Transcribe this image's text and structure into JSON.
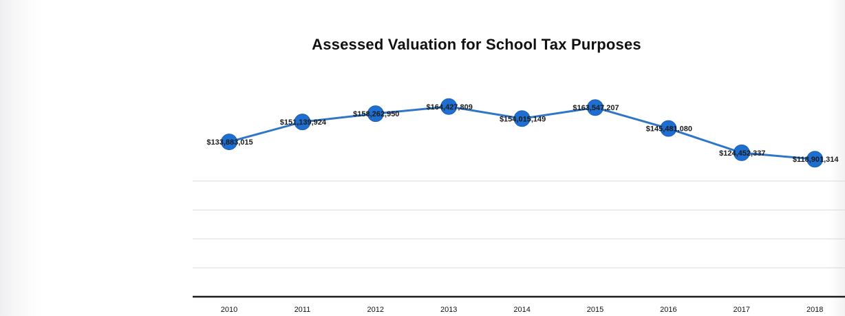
{
  "chart_data": {
    "type": "line",
    "title": "Assessed Valuation for School Tax Purposes",
    "xlabel": "",
    "ylabel": "",
    "categories": [
      "2010",
      "2011",
      "2012",
      "2013",
      "2014",
      "2015",
      "2016",
      "2017",
      "2018"
    ],
    "values": [
      133883015,
      151139924,
      158262950,
      164427809,
      154015149,
      163547207,
      145481080,
      124452337,
      118901314
    ],
    "data_labels": [
      "$133,883,015",
      "$151,139,924",
      "$158,262,950",
      "$164,427,809",
      "$154,015,149",
      "$163,547,207",
      "$145,481,080",
      "$124,452,337",
      "$118,901,314"
    ],
    "ylim": [
      0,
      200000000
    ],
    "grid": true,
    "legend": "none",
    "colors": {
      "line": "#2f75c8",
      "marker": "#1f6fd1",
      "grid": "#d9d9d9",
      "axis": "#1a1a1a"
    }
  }
}
